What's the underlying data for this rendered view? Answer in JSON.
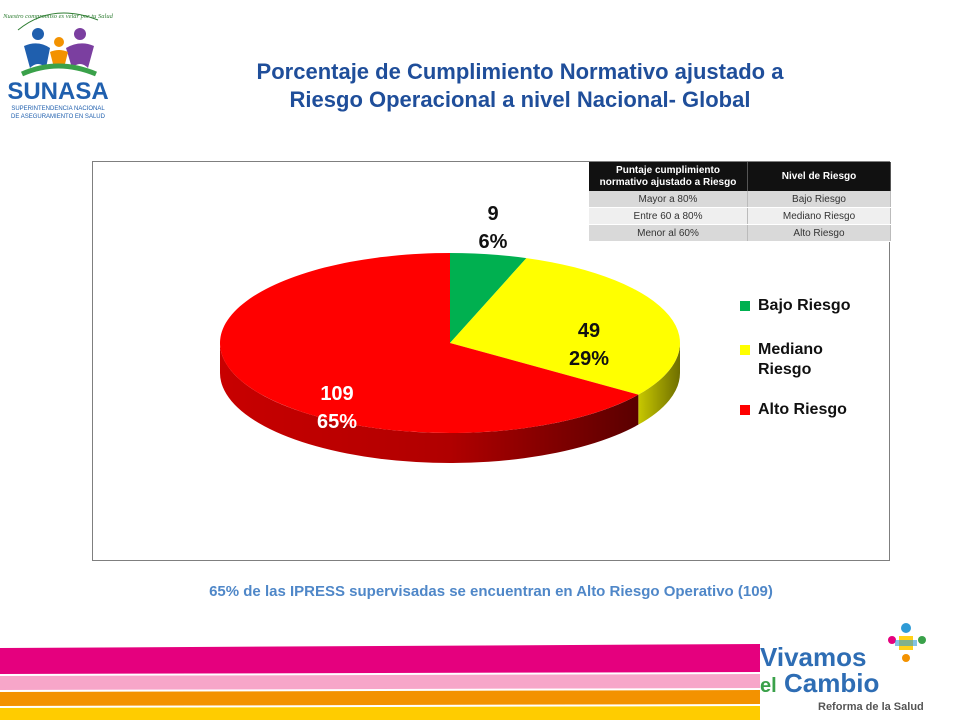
{
  "header": {
    "title_line1": "Porcentaje de Cumplimiento Normativo ajustado a",
    "title_line2": "Riesgo Operacional a nivel Nacional- Global"
  },
  "logo_sunasa": {
    "tagline": "Nuestro compromiso es velar por tu Salud",
    "name": "SUNASA",
    "sub1": "SUPERINTENDENCIA NACIONAL",
    "sub2": "DE ASEGURAMIENTO EN SALUD"
  },
  "risk_table": {
    "headers": [
      "Puntaje cumplimiento normativo ajustado a Riesgo",
      "Nivel de Riesgo"
    ],
    "rows": [
      [
        "Mayor a 80%",
        "Bajo Riesgo"
      ],
      [
        "Entre 60 a 80%",
        "Mediano Riesgo"
      ],
      [
        "Menor al 60%",
        "Alto Riesgo"
      ]
    ]
  },
  "chart_data": {
    "type": "pie",
    "title": "",
    "slices": [
      {
        "name": "Bajo Riesgo",
        "value": 9,
        "percent": "6%",
        "color": "#00b050"
      },
      {
        "name": "Mediano Riesgo",
        "value": 49,
        "percent": "29%",
        "color": "#ffff00"
      },
      {
        "name": "Alto Riesgo",
        "value": 109,
        "percent": "65%",
        "color": "#ff0000"
      }
    ],
    "legend_position": "right"
  },
  "legend": {
    "items": [
      {
        "label": "Bajo Riesgo",
        "color": "#00b050"
      },
      {
        "label_line1": "Mediano",
        "label_line2": "Riesgo",
        "color": "#ffff00"
      },
      {
        "label": "Alto Riesgo",
        "color": "#ff0000"
      }
    ]
  },
  "caption": "65% de las IPRESS supervisadas se encuentran en Alto Riesgo Operativo (109)",
  "logo_vivamos": {
    "line1": "Vivamos",
    "line2_a": "el",
    "line2_b": "Cambio",
    "line3": "Reforma de la Salud"
  },
  "colors": {
    "title": "#1f4e9a",
    "caption": "#4f87c8",
    "stripe_magenta": "#e5007e",
    "stripe_orange": "#f39200",
    "stripe_yellow": "#ffcc00"
  }
}
